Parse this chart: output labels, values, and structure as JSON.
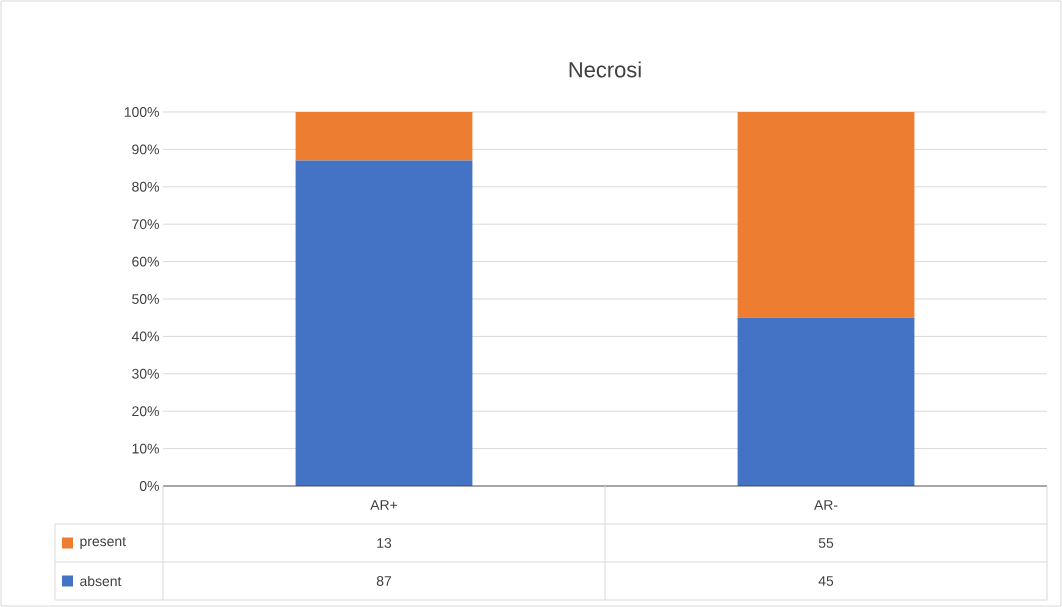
{
  "chart_data": {
    "type": "bar",
    "title": "Necrosi",
    "categories": [
      "AR+",
      "AR-"
    ],
    "stacked": true,
    "data_labels": true,
    "legend": "bottom",
    "grid": "y",
    "series": [
      {
        "name": "absent",
        "color": "#4472c4",
        "values": [
          87,
          45
        ]
      },
      {
        "name": "present",
        "color": "#ed7d31",
        "values": [
          13,
          55
        ]
      }
    ],
    "ylim": [
      0,
      100
    ],
    "yticks": [
      {
        "value": 0,
        "label": "0%"
      },
      {
        "value": 10,
        "label": "10%"
      },
      {
        "value": 20,
        "label": "20%"
      },
      {
        "value": 30,
        "label": "30%"
      },
      {
        "value": 40,
        "label": "40%"
      },
      {
        "value": 50,
        "label": "50%"
      },
      {
        "value": 60,
        "label": "60%"
      },
      {
        "value": 70,
        "label": "70%"
      },
      {
        "value": 80,
        "label": "80%"
      },
      {
        "value": 90,
        "label": "90%"
      },
      {
        "value": 100,
        "label": "100%"
      }
    ]
  }
}
